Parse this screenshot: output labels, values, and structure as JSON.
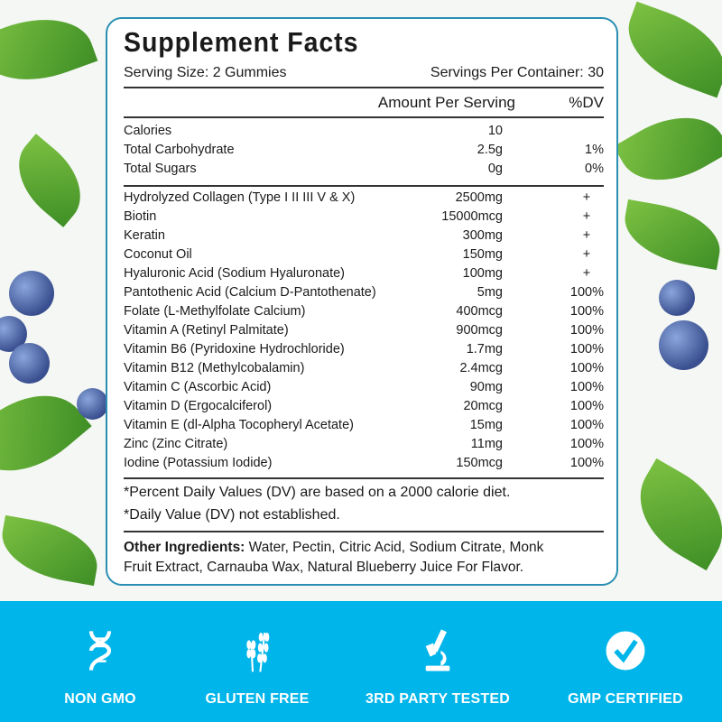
{
  "title": "Supplement Facts",
  "serving_size": "Serving Size: 2 Gummies",
  "servings_per_container": "Servings Per Container: 30",
  "header": {
    "amount": "Amount Per Serving",
    "dv": "%DV"
  },
  "basics": [
    {
      "name": "Calories",
      "amount": "10",
      "dv": ""
    },
    {
      "name": "Total Carbohydrate",
      "amount": "2.5g",
      "dv": "1%"
    },
    {
      "name": "Total Sugars",
      "amount": "0g",
      "dv": "0%"
    }
  ],
  "nutrients": [
    {
      "name": "Hydrolyzed Collagen (Type I II III V & X)",
      "amount": "2500mg",
      "dv": "+"
    },
    {
      "name": "Biotin",
      "amount": "15000mcg",
      "dv": "+"
    },
    {
      "name": "Keratin",
      "amount": "300mg",
      "dv": "+"
    },
    {
      "name": "Coconut Oil",
      "amount": "150mg",
      "dv": "+"
    },
    {
      "name": "Hyaluronic Acid (Sodium Hyaluronate)",
      "amount": "100mg",
      "dv": "+"
    },
    {
      "name": "Pantothenic Acid (Calcium D-Pantothenate)",
      "amount": "5mg",
      "dv": "100%"
    },
    {
      "name": "Folate (L-Methylfolate Calcium)",
      "amount": "400mcg",
      "dv": "100%"
    },
    {
      "name": "Vitamin A (Retinyl Palmitate)",
      "amount": "900mcg",
      "dv": "100%"
    },
    {
      "name": "Vitamin B6 (Pyridoxine Hydrochloride)",
      "amount": "1.7mg",
      "dv": "100%"
    },
    {
      "name": "Vitamin B12 (Methylcobalamin)",
      "amount": "2.4mcg",
      "dv": "100%"
    },
    {
      "name": "Vitamin C (Ascorbic Acid)",
      "amount": "90mg",
      "dv": "100%"
    },
    {
      "name": "Vitamin D (Ergocalciferol)",
      "amount": "20mcg",
      "dv": "100%"
    },
    {
      "name": "Vitamin E (dl-Alpha Tocopheryl Acetate)",
      "amount": "15mg",
      "dv": "100%"
    },
    {
      "name": "Zinc (Zinc Citrate)",
      "amount": "11mg",
      "dv": "100%"
    },
    {
      "name": "Iodine (Potassium Iodide)",
      "amount": "150mcg",
      "dv": "100%"
    }
  ],
  "footnotes": [
    "*Percent Daily Values (DV) are based on a 2000 calorie diet.",
    "*Daily Value (DV) not established."
  ],
  "other_ingredients": {
    "label": "Other Ingredients:",
    "line1": " Water, Pectin, Citric Acid, Sodium Citrate, Monk",
    "line2": "Fruit Extract, Carnauba Wax, Natural Blueberry Juice For Flavor."
  },
  "badges": [
    {
      "icon": "dna-icon",
      "label": "NON GMO"
    },
    {
      "icon": "wheat-icon",
      "label": "GLUTEN FREE"
    },
    {
      "icon": "microscope-icon",
      "label": "3RD PARTY TESTED"
    },
    {
      "icon": "check-circle-icon",
      "label": "GMP CERTIFIED"
    }
  ],
  "colors": {
    "band": "#00b5ea",
    "border": "#2a8fb3"
  }
}
